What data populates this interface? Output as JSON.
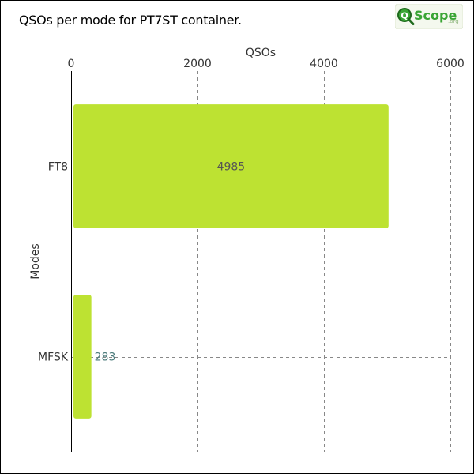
{
  "title": "QSOs per mode for PT7ST container.",
  "logo": {
    "text": "Scope",
    "suffix": ".org",
    "icon": "q-magnifier-icon"
  },
  "colors": {
    "bar": "#bde232",
    "grid": "#888888",
    "label_inside": "#555555",
    "label_outside": "#4a7a7a",
    "logo_green": "#3aa535"
  },
  "chart_data": {
    "type": "bar",
    "orientation": "horizontal",
    "categories": [
      "FT8",
      "MFSK"
    ],
    "values": [
      4985,
      283
    ],
    "xlabel": "QSOs",
    "ylabel": "Modes",
    "xlim": [
      0,
      6000
    ],
    "xticks": [
      0,
      2000,
      4000,
      6000
    ],
    "x_axis_position": "top",
    "grid": true
  }
}
